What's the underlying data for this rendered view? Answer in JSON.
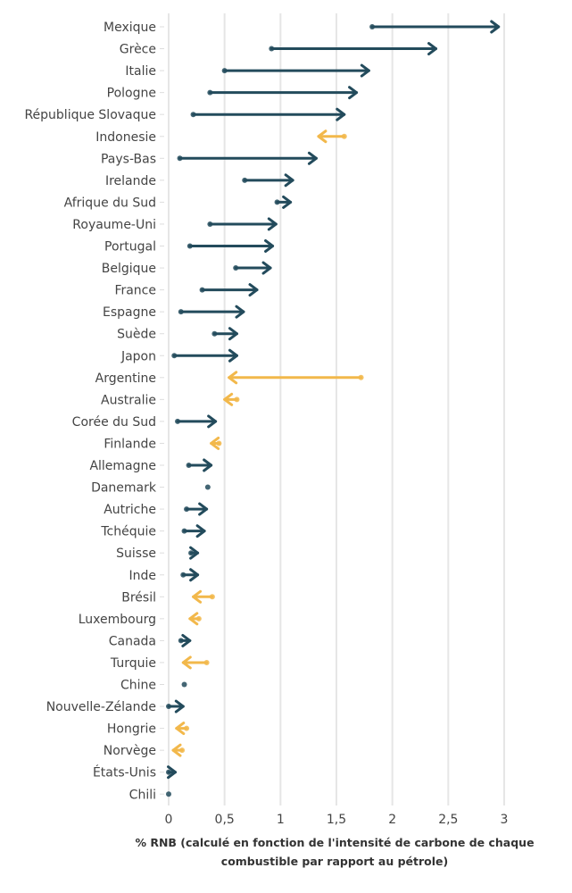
{
  "chart_data": {
    "type": "arrow-dumbbell",
    "title": "",
    "xlabel": "% RNB (calculé en fonction de l'intensité de carbone de chaque combustible par rapport au pétrole)",
    "xlabel_lines": [
      "% RNB (calculé en fonction de l'intensité de carbone de chaque",
      "combustible par rapport au pétrole)"
    ],
    "ylabel": "",
    "xlim": [
      0,
      3
    ],
    "xticks": [
      0,
      0.5,
      1,
      1.5,
      2,
      2.5,
      3
    ],
    "xtick_labels": [
      "0",
      "0,5",
      "1",
      "1,5",
      "2",
      "2,5",
      "3"
    ],
    "grid": "vertical",
    "colors": {
      "increase": "#234b5c",
      "decrease": "#f2b84b"
    },
    "series": [
      {
        "country": "Mexique",
        "from": 1.82,
        "to": 2.95
      },
      {
        "country": "Grèce",
        "from": 0.92,
        "to": 2.39
      },
      {
        "country": "Italie",
        "from": 0.5,
        "to": 1.79
      },
      {
        "country": "Pologne",
        "from": 0.37,
        "to": 1.68
      },
      {
        "country": "République Slovaque",
        "from": 0.22,
        "to": 1.57
      },
      {
        "country": "Indonesie",
        "from": 1.57,
        "to": 1.34
      },
      {
        "country": "Pays-Bas",
        "from": 0.1,
        "to": 1.32
      },
      {
        "country": "Irelande",
        "from": 0.68,
        "to": 1.11
      },
      {
        "country": "Afrique du Sud",
        "from": 0.97,
        "to": 1.09
      },
      {
        "country": "Royaume-Uni",
        "from": 0.37,
        "to": 0.96
      },
      {
        "country": "Portugal",
        "from": 0.19,
        "to": 0.93
      },
      {
        "country": "Belgique",
        "from": 0.6,
        "to": 0.91
      },
      {
        "country": "France",
        "from": 0.3,
        "to": 0.79
      },
      {
        "country": "Espagne",
        "from": 0.11,
        "to": 0.67
      },
      {
        "country": "Suède",
        "from": 0.41,
        "to": 0.61
      },
      {
        "country": "Japon",
        "from": 0.05,
        "to": 0.61
      },
      {
        "country": "Argentine",
        "from": 1.72,
        "to": 0.54
      },
      {
        "country": "Australie",
        "from": 0.61,
        "to": 0.5
      },
      {
        "country": "Corée du Sud",
        "from": 0.08,
        "to": 0.42
      },
      {
        "country": "Finlande",
        "from": 0.45,
        "to": 0.38
      },
      {
        "country": "Allemagne",
        "from": 0.18,
        "to": 0.38
      },
      {
        "country": "Danemark",
        "from": 0.35,
        "to": 0.35
      },
      {
        "country": "Autriche",
        "from": 0.16,
        "to": 0.34
      },
      {
        "country": "Tchéquie",
        "from": 0.14,
        "to": 0.32
      },
      {
        "country": "Suisse",
        "from": 0.2,
        "to": 0.26
      },
      {
        "country": "Inde",
        "from": 0.13,
        "to": 0.26
      },
      {
        "country": "Brésil",
        "from": 0.39,
        "to": 0.22
      },
      {
        "country": "Luxembourg",
        "from": 0.27,
        "to": 0.19
      },
      {
        "country": "Canada",
        "from": 0.11,
        "to": 0.19
      },
      {
        "country": "Turquie",
        "from": 0.34,
        "to": 0.13
      },
      {
        "country": "Chine",
        "from": 0.14,
        "to": 0.14
      },
      {
        "country": "Nouvelle-Zélande",
        "from": 0.0,
        "to": 0.13
      },
      {
        "country": "Hongrie",
        "from": 0.16,
        "to": 0.07
      },
      {
        "country": "Norvège",
        "from": 0.12,
        "to": 0.04
      },
      {
        "country": "États-Unis",
        "from": 0.0,
        "to": 0.06
      },
      {
        "country": "Chili",
        "from": 0.0,
        "to": 0.0
      }
    ]
  }
}
